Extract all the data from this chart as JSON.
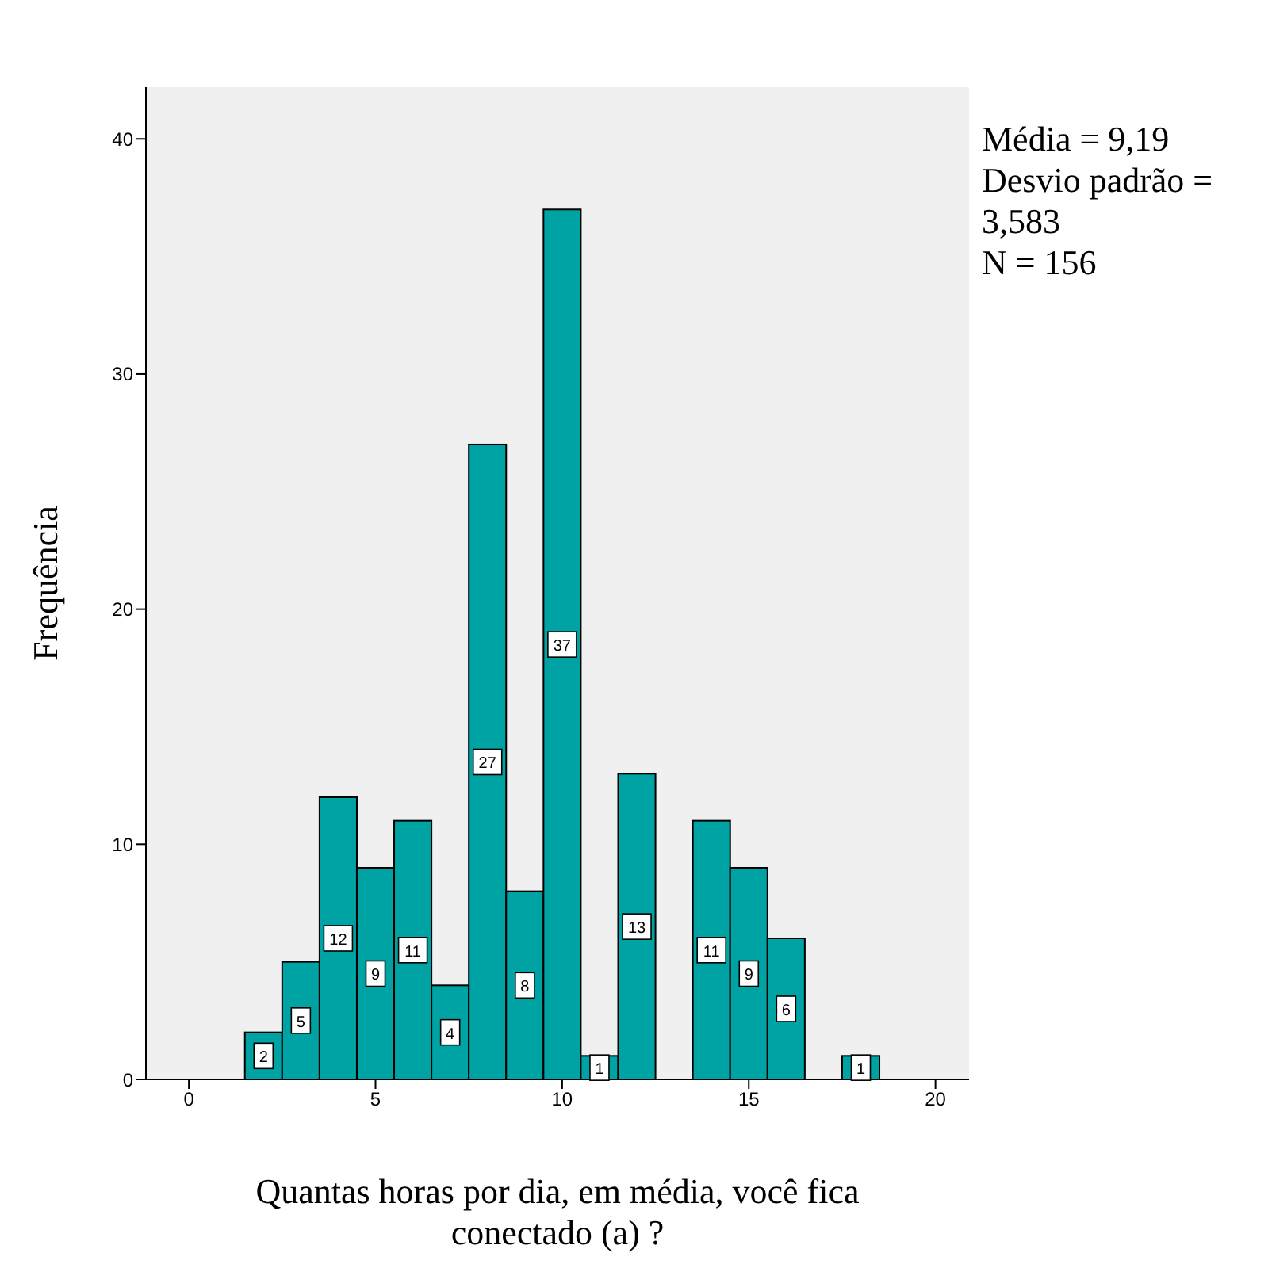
{
  "chart_data": {
    "type": "histogram",
    "xlabel": "Quantas horas por dia, em média, você fica conectado (a) ?",
    "ylabel": "Frequência",
    "bins": [
      1.5,
      2.5,
      3.5,
      4.5,
      5.5,
      6.5,
      7.5,
      8.5,
      9.5,
      10.5,
      11.5,
      12.5,
      13.5,
      14.5,
      15.5,
      16.5,
      17.5,
      18.5
    ],
    "values": [
      2,
      5,
      12,
      9,
      11,
      4,
      27,
      8,
      37,
      1,
      13,
      0,
      11,
      9,
      6,
      0,
      1
    ],
    "value_labels": [
      "2",
      "5",
      "12",
      "9",
      "11",
      "4",
      "27",
      "8",
      "37",
      "1",
      "13",
      null,
      "11",
      "9",
      "6",
      null,
      "1"
    ],
    "color": "#00a3a3",
    "xlim": [
      -1.15,
      20.9
    ],
    "xticks": [
      0,
      5,
      10,
      15,
      20
    ],
    "ylim": [
      0,
      42.2
    ],
    "yticks": [
      0,
      10,
      20,
      30,
      40
    ],
    "grid": false,
    "annotations": [
      "Média = 9,19",
      "Desvio padrão = 3,583",
      "N = 156"
    ]
  }
}
